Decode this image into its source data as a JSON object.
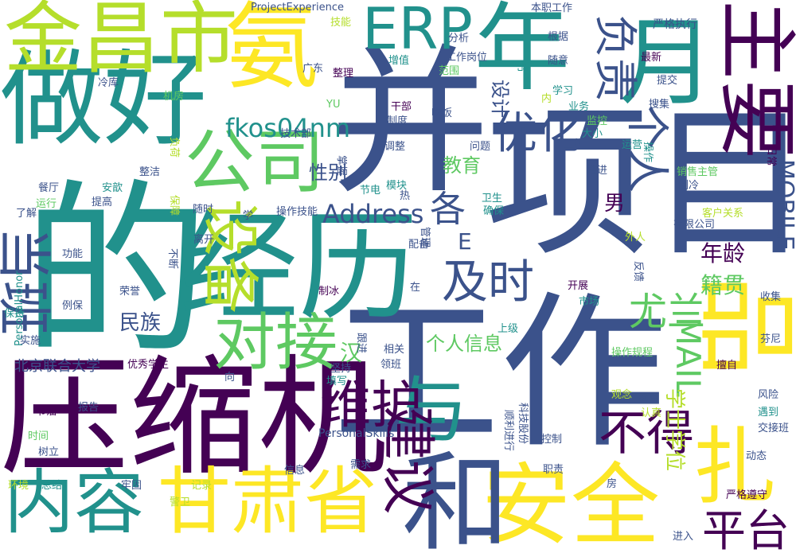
{
  "palette": {
    "background": "#ffffff",
    "dark_purple": "#440154",
    "indigo": "#3b528b",
    "teal": "#21918c",
    "green": "#5ec962",
    "yellow_green": "#b5de2b",
    "yellow": "#fde725"
  },
  "words": [
    {
      "text": "的",
      "color": "#21918c"
    },
    {
      "text": "工作",
      "color": "#3b528b"
    },
    {
      "text": "项目",
      "color": "#3b528b"
    },
    {
      "text": "并",
      "color": "#3b528b"
    },
    {
      "text": "压缩机",
      "color": "#440154"
    },
    {
      "text": "经历",
      "color": "#21918c"
    },
    {
      "text": "做好",
      "color": "#21918c"
    },
    {
      "text": "安全",
      "color": "#fde725"
    },
    {
      "text": "和",
      "color": "#3b528b"
    },
    {
      "text": "金昌市",
      "color": "#b5de2b"
    },
    {
      "text": "年",
      "color": "#21918c"
    },
    {
      "text": "月",
      "color": "#21918c"
    },
    {
      "text": "主要",
      "color": "#440154"
    },
    {
      "text": "氨",
      "color": "#fde725"
    },
    {
      "text": "公司",
      "color": "#5ec962"
    },
    {
      "text": "甘肃省",
      "color": "#fde725"
    },
    {
      "text": "内容",
      "color": "#21918c"
    },
    {
      "text": "与",
      "color": "#21918c"
    },
    {
      "text": "ERP",
      "color": "#21918c"
    },
    {
      "text": "品",
      "color": "#fde725"
    },
    {
      "text": "扎",
      "color": "#fde725"
    },
    {
      "text": "当班",
      "color": "#3b528b"
    },
    {
      "text": "设备",
      "color": "#b5de2b"
    },
    {
      "text": "对接",
      "color": "#5ec962"
    },
    {
      "text": "维护",
      "color": "#440154"
    },
    {
      "text": "建议",
      "color": "#440154"
    },
    {
      "text": "不得",
      "color": "#440154"
    },
    {
      "text": "平台",
      "color": "#440154"
    },
    {
      "text": "负责",
      "color": "#3b528b"
    },
    {
      "text": "个人",
      "color": "#3b528b"
    },
    {
      "text": "优化",
      "color": "#3b528b"
    },
    {
      "text": "及时",
      "color": "#3b528b"
    },
    {
      "text": "尤兰",
      "color": "#5ec962"
    },
    {
      "text": "fkos04nm",
      "color": "#21918c"
    },
    {
      "text": "Address",
      "color": "#3b528b"
    },
    {
      "text": "MOBILE",
      "color": "#3b528b"
    },
    {
      "text": "MAIL",
      "color": "#5ec962"
    },
    {
      "text": "各",
      "color": "#3b528b"
    },
    {
      "text": "E",
      "color": "#3b528b"
    },
    {
      "text": "年龄",
      "color": "#440154"
    },
    {
      "text": "籍贯",
      "color": "#5ec962"
    },
    {
      "text": "民族",
      "color": "#3b528b"
    },
    {
      "text": "个人信息",
      "color": "#5ec962"
    },
    {
      "text": "汉",
      "color": "#5ec962"
    },
    {
      "text": "学士学位",
      "color": "#b5de2b"
    },
    {
      "text": "北京联合大学",
      "color": "#3b528b"
    },
    {
      "text": "教育",
      "color": "#5ec962"
    },
    {
      "text": "性别",
      "color": "#3b528b"
    },
    {
      "text": "男",
      "color": "#440154"
    },
    {
      "text": "设计",
      "color": "#3b528b"
    },
    {
      "text": "ProjectExperience",
      "color": "#3b528b"
    },
    {
      "text": "PersonalHonor",
      "color": "#21918c"
    },
    {
      "text": "PersonalSkills",
      "color": "#3b528b"
    },
    {
      "text": "技能",
      "color": "#b5de2b"
    },
    {
      "text": "本职工作",
      "color": "#3b528b"
    },
    {
      "text": "严格执行",
      "color": "#3b528b"
    },
    {
      "text": "分析",
      "color": "#3b528b"
    },
    {
      "text": "根据",
      "color": "#3b528b"
    },
    {
      "text": "节",
      "color": "#21918c"
    },
    {
      "text": "随意",
      "color": "#3b528b"
    },
    {
      "text": "最新",
      "color": "#440154"
    },
    {
      "text": "提交",
      "color": "#3b528b"
    },
    {
      "text": "工作岗位",
      "color": "#3b528b"
    },
    {
      "text": "增值",
      "color": "#21918c"
    },
    {
      "text": "整理",
      "color": "#440154"
    },
    {
      "text": "广东",
      "color": "#3b528b"
    },
    {
      "text": "范围",
      "color": "#5ec962"
    },
    {
      "text": "冷库",
      "color": "#3b528b"
    },
    {
      "text": "机房",
      "color": "#5ec962"
    },
    {
      "text": "YU",
      "color": "#5ec962"
    },
    {
      "text": "干部",
      "color": "#440154"
    },
    {
      "text": "制度",
      "color": "#3b528b"
    },
    {
      "text": "吃饭",
      "color": "#3b528b"
    },
    {
      "text": "内",
      "color": "#b5de2b"
    },
    {
      "text": "学习",
      "color": "#21918c"
    },
    {
      "text": "业务",
      "color": "#21918c"
    },
    {
      "text": "监控",
      "color": "#5ec962"
    },
    {
      "text": "大小",
      "color": "#21918c"
    },
    {
      "text": "搜集",
      "color": "#3b528b"
    },
    {
      "text": "运营",
      "color": "#21918c"
    },
    {
      "text": "日常",
      "color": "#440154"
    },
    {
      "text": "操作",
      "color": "#21918c"
    },
    {
      "text": "技术部",
      "color": "#3b528b"
    },
    {
      "text": "负荷",
      "color": "#b5de2b"
    },
    {
      "text": "调整",
      "color": "#3b528b"
    },
    {
      "text": "问题",
      "color": "#3b528b"
    },
    {
      "text": "整洁",
      "color": "#3b528b"
    },
    {
      "text": "掌握",
      "color": "#3b528b"
    },
    {
      "text": "推进",
      "color": "#3b528b"
    },
    {
      "text": "销售主管",
      "color": "#5ec962"
    },
    {
      "text": "制冷",
      "color": "#3b528b"
    },
    {
      "text": "餐厅",
      "color": "#3b528b"
    },
    {
      "text": "安歆",
      "color": "#21918c"
    },
    {
      "text": "节电",
      "color": "#21918c"
    },
    {
      "text": "模块",
      "color": "#21918c"
    },
    {
      "text": "热",
      "color": "#3b528b"
    },
    {
      "text": "卫生",
      "color": "#21918c"
    },
    {
      "text": "运行",
      "color": "#5ec962"
    },
    {
      "text": "提高",
      "color": "#3b528b"
    },
    {
      "text": "保障",
      "color": "#b5de2b"
    },
    {
      "text": "随时",
      "color": "#3b528b"
    },
    {
      "text": "学",
      "color": "#3b528b"
    },
    {
      "text": "操作技能",
      "color": "#3b528b"
    },
    {
      "text": "确保",
      "color": "#21918c"
    },
    {
      "text": "客户关系",
      "color": "#b5de2b"
    },
    {
      "text": "了解",
      "color": "#3b528b"
    },
    {
      "text": "离开",
      "color": "#3b528b"
    },
    {
      "text": "配备",
      "color": "#3b528b"
    },
    {
      "text": "管理",
      "color": "#3b528b"
    },
    {
      "text": "有限公司",
      "color": "#3b528b"
    },
    {
      "text": "外人",
      "color": "#b5de2b"
    },
    {
      "text": "功能",
      "color": "#3b528b"
    },
    {
      "text": "不断",
      "color": "#3b528b"
    },
    {
      "text": "反馈",
      "color": "#3b528b"
    },
    {
      "text": "荣誉",
      "color": "#3b528b"
    },
    {
      "text": "制冰",
      "color": "#440154"
    },
    {
      "text": "开展",
      "color": "#440154"
    },
    {
      "text": "例保",
      "color": "#3b528b"
    },
    {
      "text": "在",
      "color": "#3b528b"
    },
    {
      "text": "市场",
      "color": "#21918c"
    },
    {
      "text": "收集",
      "color": "#3b528b"
    },
    {
      "text": "保持",
      "color": "#21918c"
    },
    {
      "text": "上级",
      "color": "#21918c"
    },
    {
      "text": "实施",
      "color": "#3b528b"
    },
    {
      "text": "跟进",
      "color": "#3b528b"
    },
    {
      "text": "相关",
      "color": "#3b528b"
    },
    {
      "text": "领班",
      "color": "#3b528b"
    },
    {
      "text": "操作规程",
      "color": "#5ec962"
    },
    {
      "text": "芬尼",
      "color": "#3b528b"
    },
    {
      "text": "优秀学生",
      "color": "#440154"
    },
    {
      "text": "坚持",
      "color": "#3b528b"
    },
    {
      "text": "擅自",
      "color": "#440154"
    },
    {
      "text": "向",
      "color": "#3b528b"
    },
    {
      "text": "填写",
      "color": "#21918c"
    },
    {
      "text": "观念",
      "color": "#b5de2b"
    },
    {
      "text": "客户",
      "color": "#3b528b"
    },
    {
      "text": "风险",
      "color": "#3b528b"
    },
    {
      "text": "报告",
      "color": "#3b528b"
    },
    {
      "text": "科技股份",
      "color": "#3b528b"
    },
    {
      "text": "认真",
      "color": "#b5de2b"
    },
    {
      "text": "节油",
      "color": "#440154"
    },
    {
      "text": "遇到",
      "color": "#21918c"
    },
    {
      "text": "交接班",
      "color": "#3b528b"
    },
    {
      "text": "时间",
      "color": "#5ec962"
    },
    {
      "text": "顺利进行",
      "color": "#3b528b"
    },
    {
      "text": "树立",
      "color": "#3b528b"
    },
    {
      "text": "控制",
      "color": "#3b528b"
    },
    {
      "text": "动态",
      "color": "#3b528b"
    },
    {
      "text": "信息",
      "color": "#3b528b"
    },
    {
      "text": "职责",
      "color": "#3b528b"
    },
    {
      "text": "需求",
      "color": "#3b528b"
    },
    {
      "text": "环境",
      "color": "#b5de2b"
    },
    {
      "text": "总结",
      "color": "#21918c"
    },
    {
      "text": "牢固",
      "color": "#3b528b"
    },
    {
      "text": "记录",
      "color": "#b5de2b"
    },
    {
      "text": "房",
      "color": "#3b528b"
    },
    {
      "text": "严格遵守",
      "color": "#440154"
    },
    {
      "text": "警卫",
      "color": "#b5de2b"
    },
    {
      "text": "进入",
      "color": "#3b528b"
    }
  ]
}
